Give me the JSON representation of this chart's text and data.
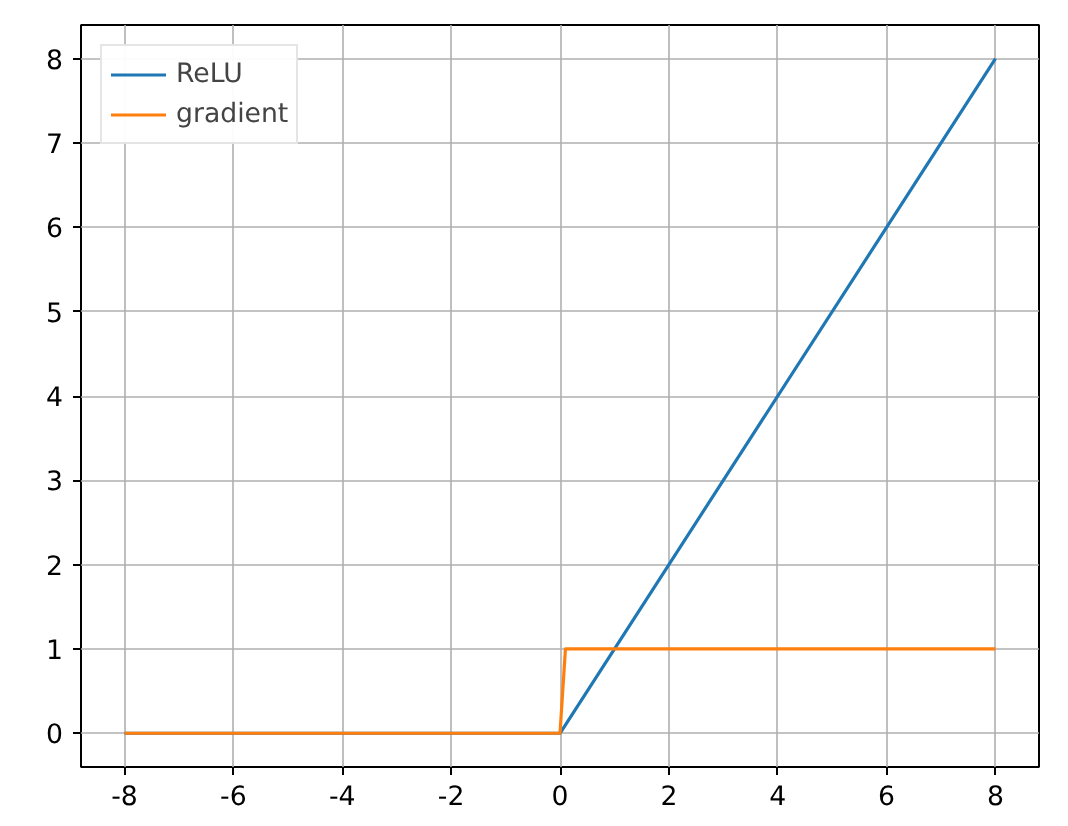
{
  "chart_data": {
    "type": "line",
    "xlim": [
      -8.8,
      8.8
    ],
    "ylim": [
      -0.4,
      8.4
    ],
    "xticks": [
      -8,
      -6,
      -4,
      -2,
      0,
      2,
      4,
      6,
      8
    ],
    "yticks": [
      0,
      1,
      2,
      3,
      4,
      5,
      6,
      7,
      8
    ],
    "grid": true,
    "legend": "top left",
    "marker": "none",
    "line_style": "solid",
    "series": [
      {
        "name": "ReLU",
        "color": "#1f77b4",
        "x": [
          -8,
          0,
          8
        ],
        "values": [
          0,
          0,
          8
        ]
      },
      {
        "name": "gradient",
        "color": "#ff7f0e",
        "x": [
          -8,
          0,
          0.1,
          8
        ],
        "values": [
          0,
          0,
          1,
          1
        ]
      }
    ]
  }
}
